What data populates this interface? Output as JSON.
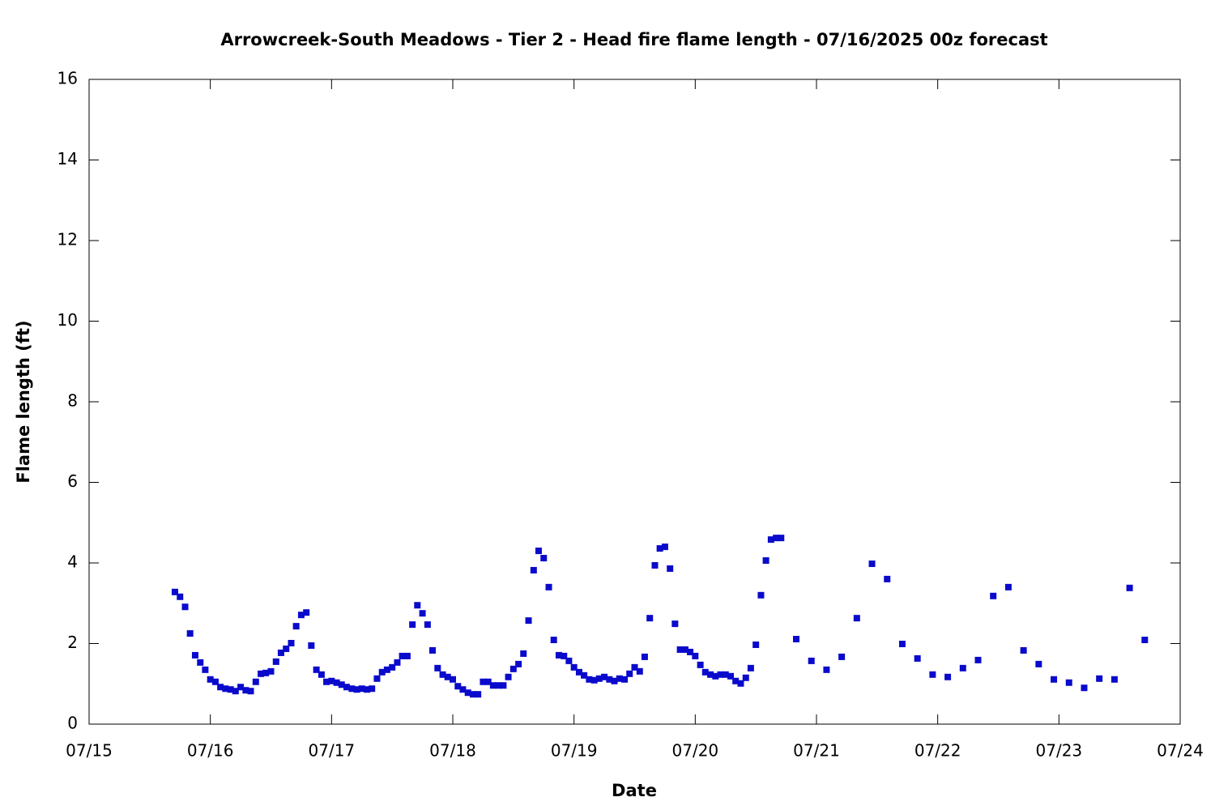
{
  "chart_data": {
    "type": "scatter",
    "title": "Arrowcreek-South Meadows - Tier 2 - Head fire flame length - 07/16/2025 00z forecast",
    "x_label": "Date",
    "y_label": "Flame length (ft)",
    "xlim": [
      15,
      24
    ],
    "xticks": [
      {
        "value": 15,
        "label": "07/15"
      },
      {
        "value": 16,
        "label": "07/16"
      },
      {
        "value": 17,
        "label": "07/17"
      },
      {
        "value": 18,
        "label": "07/18"
      },
      {
        "value": 19,
        "label": "07/19"
      },
      {
        "value": 20,
        "label": "07/20"
      },
      {
        "value": 21,
        "label": "07/21"
      },
      {
        "value": 22,
        "label": "07/22"
      },
      {
        "value": 23,
        "label": "07/23"
      },
      {
        "value": 24,
        "label": "07/24"
      }
    ],
    "ylim": [
      0,
      16
    ],
    "yticks": [
      0,
      2,
      4,
      6,
      8,
      10,
      12,
      14,
      16
    ],
    "grid": false,
    "series": [
      {
        "color": "#0a0acc",
        "x": [
          15.708,
          15.75,
          15.792,
          15.833,
          15.875,
          15.917,
          15.958,
          16.0,
          16.042,
          16.083,
          16.125,
          16.167,
          16.208,
          16.25,
          16.292,
          16.333,
          16.375,
          16.417,
          16.458,
          16.5,
          16.542,
          16.583,
          16.625,
          16.667,
          16.708,
          16.75,
          16.792,
          16.833,
          16.875,
          16.917,
          16.958,
          17.0,
          17.042,
          17.083,
          17.125,
          17.167,
          17.208,
          17.25,
          17.292,
          17.333,
          17.375,
          17.417,
          17.458,
          17.5,
          17.542,
          17.583,
          17.625,
          17.667,
          17.708,
          17.75,
          17.792,
          17.833,
          17.875,
          17.917,
          17.958,
          18.0,
          18.042,
          18.083,
          18.125,
          18.167,
          18.208,
          18.25,
          18.292,
          18.333,
          18.375,
          18.417,
          18.458,
          18.5,
          18.542,
          18.583,
          18.625,
          18.667,
          18.708,
          18.75,
          18.792,
          18.833,
          18.875,
          18.917,
          18.958,
          19.0,
          19.042,
          19.083,
          19.125,
          19.167,
          19.208,
          19.25,
          19.292,
          19.333,
          19.375,
          19.417,
          19.458,
          19.5,
          19.542,
          19.583,
          19.625,
          19.667,
          19.708,
          19.75,
          19.792,
          19.833,
          19.875,
          19.917,
          19.958,
          20.0,
          20.042,
          20.083,
          20.125,
          20.167,
          20.208,
          20.25,
          20.292,
          20.333,
          20.375,
          20.417,
          20.458,
          20.5,
          20.542,
          20.583,
          20.625,
          20.667,
          20.708,
          20.833,
          20.958,
          21.083,
          21.208,
          21.333,
          21.458,
          21.583,
          21.708,
          21.833,
          21.958,
          22.083,
          22.208,
          22.333,
          22.458,
          22.583,
          22.708,
          22.833,
          22.958,
          23.083,
          23.208,
          23.333,
          23.458,
          23.583,
          23.708
        ],
        "values": [
          3.28,
          3.16,
          2.91,
          2.25,
          1.71,
          1.53,
          1.35,
          1.11,
          1.05,
          0.92,
          0.88,
          0.86,
          0.82,
          0.92,
          0.84,
          0.82,
          1.05,
          1.25,
          1.27,
          1.31,
          1.55,
          1.77,
          1.87,
          2.01,
          2.43,
          2.71,
          2.77,
          1.95,
          1.35,
          1.23,
          1.05,
          1.07,
          1.03,
          0.98,
          0.92,
          0.88,
          0.86,
          0.88,
          0.86,
          0.88,
          1.13,
          1.29,
          1.35,
          1.41,
          1.53,
          1.69,
          1.69,
          2.47,
          2.95,
          2.75,
          2.47,
          1.83,
          1.39,
          1.23,
          1.17,
          1.11,
          0.94,
          0.86,
          0.78,
          0.74,
          0.74,
          1.05,
          1.05,
          0.96,
          0.96,
          0.96,
          1.17,
          1.37,
          1.49,
          1.75,
          2.57,
          3.82,
          4.3,
          4.12,
          3.4,
          2.09,
          1.71,
          1.69,
          1.57,
          1.41,
          1.29,
          1.21,
          1.11,
          1.09,
          1.13,
          1.17,
          1.11,
          1.07,
          1.13,
          1.11,
          1.25,
          1.41,
          1.31,
          1.67,
          2.63,
          3.94,
          4.36,
          4.4,
          3.86,
          2.49,
          1.85,
          1.85,
          1.79,
          1.69,
          1.47,
          1.29,
          1.23,
          1.19,
          1.23,
          1.23,
          1.19,
          1.07,
          1.01,
          1.15,
          1.39,
          1.97,
          3.2,
          4.06,
          4.58,
          4.62,
          4.62,
          2.11,
          1.57,
          1.35,
          1.67,
          2.63,
          3.98,
          3.6,
          1.99,
          1.63,
          1.23,
          1.17,
          1.39,
          1.59,
          3.18,
          3.4,
          1.83,
          1.49,
          1.11,
          1.03,
          0.9,
          1.13,
          1.11,
          3.38,
          2.09
        ]
      }
    ]
  }
}
